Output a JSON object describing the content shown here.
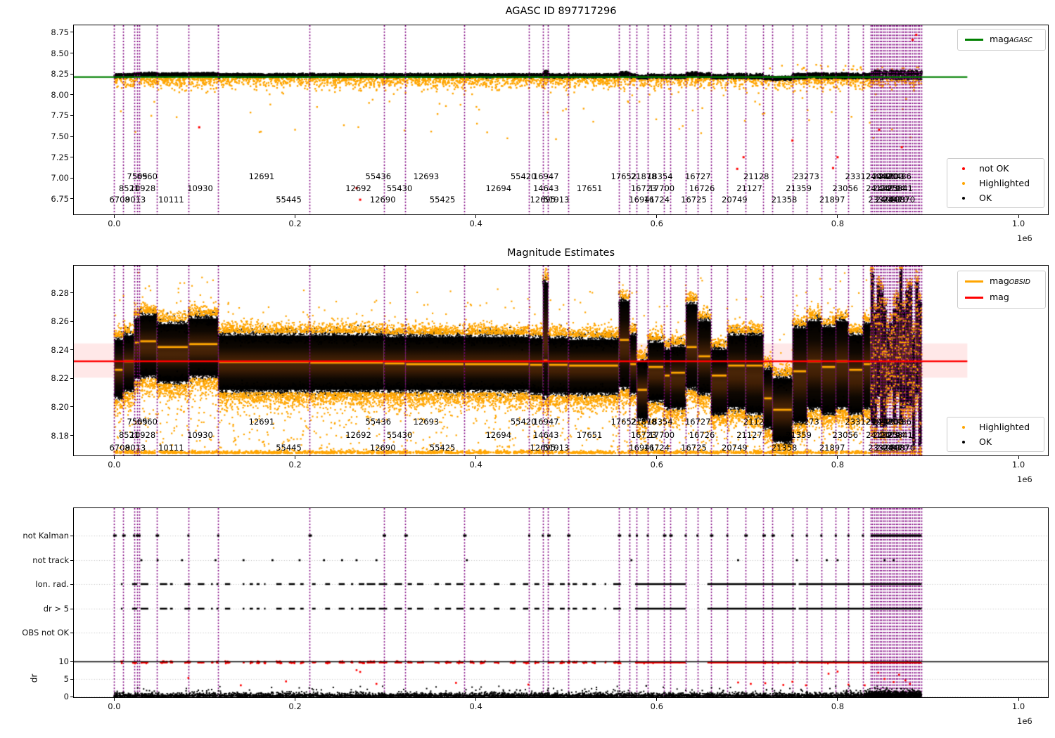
{
  "colors": {
    "orange": "#FFA500",
    "green": "#008000",
    "red": "#FF0000",
    "purple": "#800080",
    "black": "#000000",
    "pink_band": "rgba(255,0,0,0.09)",
    "grid": "#bbbbbb"
  },
  "xaxis": {
    "ticks": [
      0.0,
      0.2,
      0.4,
      0.6,
      0.8,
      1.0
    ],
    "offset_text": "1e6",
    "data_max": 0.893
  },
  "vlines": {
    "singles": [
      0.0,
      0.01,
      0.022,
      0.025,
      0.028,
      0.047,
      0.082,
      0.115,
      0.216,
      0.298,
      0.322,
      0.387,
      0.459,
      0.474,
      0.48,
      0.502,
      0.558,
      0.57,
      0.578,
      0.59,
      0.608,
      0.615,
      0.632,
      0.645,
      0.66,
      0.678,
      0.698,
      0.718,
      0.728,
      0.75,
      0.766,
      0.782,
      0.798,
      0.812,
      0.828
    ],
    "cluster": {
      "start": 0.8365,
      "end": 0.893,
      "step": 0.002
    }
  },
  "obsid_rows": [
    [
      [
        "7505",
        0.0255
      ],
      [
        "6960",
        0.0365
      ],
      [
        "12691",
        0.163
      ],
      [
        "55436",
        0.292
      ],
      [
        "12693",
        0.345
      ],
      [
        "55420",
        0.4525
      ],
      [
        "16947",
        0.4775
      ],
      [
        "17652",
        0.5635
      ],
      [
        "21878",
        0.5855
      ],
      [
        "18354",
        0.6035
      ],
      [
        "16727",
        0.6455
      ],
      [
        "21128",
        0.71
      ],
      [
        "23273",
        0.7655
      ],
      [
        "23312",
        0.8225
      ],
      [
        "24042",
        0.8455
      ],
      [
        "24920",
        0.8525
      ],
      [
        "24203",
        0.8595
      ],
      [
        "20486",
        0.8675
      ]
    ],
    [
      [
        "8521",
        0.0165
      ],
      [
        "10928",
        0.0315
      ],
      [
        "10930",
        0.095
      ],
      [
        "12692",
        0.27
      ],
      [
        "55430",
        0.3155
      ],
      [
        "12694",
        0.425
      ],
      [
        "14643",
        0.4775
      ],
      [
        "17651",
        0.5255
      ],
      [
        "16723",
        0.5855
      ],
      [
        "17700",
        0.6055
      ],
      [
        "16726",
        0.65
      ],
      [
        "21127",
        0.7025
      ],
      [
        "21359",
        0.757
      ],
      [
        "23056",
        0.8085
      ],
      [
        "24122",
        0.8455
      ],
      [
        "24423",
        0.853
      ],
      [
        "24794",
        0.861
      ],
      [
        "25841",
        0.869
      ]
    ],
    [
      [
        "6708",
        0.006
      ],
      [
        "9013",
        0.0235
      ],
      [
        "10111",
        0.063
      ],
      [
        "55445",
        0.193
      ],
      [
        "12690",
        0.297
      ],
      [
        "55425",
        0.363
      ],
      [
        "12695",
        0.474
      ],
      [
        "51913",
        0.489
      ],
      [
        "16941",
        0.5835
      ],
      [
        "16724",
        0.6
      ],
      [
        "16725",
        0.641
      ],
      [
        "20749",
        0.686
      ],
      [
        "21358",
        0.741
      ],
      [
        "21897",
        0.794
      ],
      [
        "23324",
        0.848
      ],
      [
        "24083",
        0.856
      ],
      [
        "24470",
        0.864
      ],
      [
        "20870",
        0.8715
      ]
    ]
  ],
  "chart_data": [
    {
      "type": "scatter",
      "title": "AGASC ID 897717296",
      "xlabel": "",
      "ylabel": "",
      "xlim": [
        -0.04465,
        1.0326
      ],
      "ylim": [
        6.564,
        8.834
      ],
      "yticks": [
        8.75,
        8.5,
        8.25,
        8.0,
        7.75,
        7.5,
        7.25,
        7.0,
        6.75
      ],
      "x_unit": "1e6",
      "mag_agasc": 8.212,
      "legend_line": [
        {
          "main": "mag",
          "sub": "AGASC",
          "color": "#008000"
        }
      ],
      "legend_points": [
        {
          "label": "not OK",
          "color": "#FF0000"
        },
        {
          "label": "Highlighted",
          "color": "#FFA500"
        },
        {
          "label": "OK",
          "color": "#000000"
        }
      ],
      "not_ok_points": [
        [
          0.094,
          7.61
        ],
        [
          0.268,
          6.88
        ],
        [
          0.272,
          6.74
        ],
        [
          0.689,
          7.11
        ],
        [
          0.696,
          7.25
        ],
        [
          0.75,
          7.45
        ],
        [
          0.795,
          7.12
        ],
        [
          0.8,
          7.25
        ],
        [
          0.846,
          7.58
        ],
        [
          0.871,
          7.37
        ],
        [
          0.883,
          8.66
        ],
        [
          0.887,
          8.72
        ]
      ]
    },
    {
      "type": "scatter",
      "title": "Magnitude Estimates",
      "xlabel": "",
      "ylabel": "",
      "xlim": [
        -0.04465,
        1.0326
      ],
      "ylim": [
        8.166,
        8.299
      ],
      "yticks": [
        8.28,
        8.26,
        8.24,
        8.22,
        8.2,
        8.18
      ],
      "mag": 8.232,
      "mag_band": [
        8.2205,
        8.2445
      ],
      "clip_strip_y": 8.168,
      "legend_line": [
        {
          "main": "mag",
          "sub": "OBSID",
          "color": "#FFA500"
        },
        {
          "main": "mag",
          "color": "#FF0000"
        }
      ],
      "legend_points": [
        {
          "label": "Highlighted",
          "color": "#FFA500"
        },
        {
          "label": "OK",
          "color": "#000000"
        }
      ],
      "segments": [
        [
          0.0,
          0.01,
          8.207,
          8.247,
          8.226
        ],
        [
          0.01,
          0.022,
          8.212,
          8.25,
          8.232
        ],
        [
          0.022,
          0.028,
          8.22,
          8.262,
          8.245
        ],
        [
          0.028,
          0.047,
          8.222,
          8.264,
          8.246
        ],
        [
          0.047,
          0.082,
          8.218,
          8.258,
          8.242
        ],
        [
          0.082,
          0.115,
          8.222,
          8.262,
          8.244
        ],
        [
          0.115,
          0.216,
          8.212,
          8.25,
          8.2315
        ],
        [
          0.216,
          0.298,
          8.212,
          8.25,
          8.231
        ],
        [
          0.298,
          0.322,
          8.212,
          8.249,
          8.2305
        ],
        [
          0.322,
          0.387,
          8.212,
          8.249,
          8.23
        ],
        [
          0.387,
          0.459,
          8.212,
          8.249,
          8.23
        ],
        [
          0.459,
          0.474,
          8.21,
          8.248,
          8.2295
        ],
        [
          0.474,
          0.48,
          8.208,
          8.287,
          8.2325
        ],
        [
          0.48,
          0.502,
          8.21,
          8.248,
          8.2295
        ],
        [
          0.502,
          0.558,
          8.21,
          8.247,
          8.229
        ],
        [
          0.558,
          0.57,
          8.214,
          8.274,
          8.247
        ],
        [
          0.57,
          0.578,
          8.21,
          8.25,
          8.23
        ],
        [
          0.578,
          0.59,
          8.192,
          8.232,
          8.212
        ],
        [
          0.59,
          0.608,
          8.205,
          8.245,
          8.228
        ],
        [
          0.608,
          0.615,
          8.2,
          8.24,
          8.222
        ],
        [
          0.615,
          0.632,
          8.2,
          8.242,
          8.224
        ],
        [
          0.632,
          0.645,
          8.214,
          8.272,
          8.242
        ],
        [
          0.645,
          0.66,
          8.21,
          8.26,
          8.2355
        ],
        [
          0.66,
          0.678,
          8.196,
          8.24,
          8.222
        ],
        [
          0.678,
          0.698,
          8.2,
          8.25,
          8.229
        ],
        [
          0.698,
          0.718,
          8.196,
          8.25,
          8.229
        ],
        [
          0.718,
          0.728,
          8.186,
          8.226,
          8.206
        ],
        [
          0.728,
          0.75,
          8.176,
          8.22,
          8.198
        ],
        [
          0.75,
          0.766,
          8.19,
          8.255,
          8.225
        ],
        [
          0.766,
          0.782,
          8.2,
          8.26,
          8.232
        ],
        [
          0.782,
          0.798,
          8.196,
          8.256,
          8.228
        ],
        [
          0.798,
          0.812,
          8.2,
          8.26,
          8.232
        ],
        [
          0.812,
          0.828,
          8.196,
          8.25,
          8.226
        ],
        [
          0.828,
          0.8365,
          8.2,
          8.258,
          8.23
        ],
        [
          0.8365,
          0.893,
          8.18,
          8.295,
          8.246
        ]
      ]
    },
    {
      "type": "scatter",
      "title": "",
      "ylabel": "dr",
      "categories": [
        "not Kalman",
        "not track",
        "Ion. rad.",
        "dr > 5",
        "OBS not OK"
      ],
      "dr_ticks": [
        10,
        5,
        0
      ],
      "hline": 10,
      "red_level": 9.72,
      "dash_region": [
        0.0,
        0.574
      ],
      "solid_runs": [
        [
          0.576,
          0.632
        ],
        [
          0.656,
          0.754
        ],
        [
          0.757,
          0.893
        ]
      ],
      "not_track_x": [
        0.03,
        0.048,
        0.075,
        0.112,
        0.143,
        0.175,
        0.205,
        0.232,
        0.252,
        0.268,
        0.29,
        0.39,
        0.572,
        0.69,
        0.755,
        0.788,
        0.8,
        0.852,
        0.862
      ],
      "red_strays": [
        [
          0.082,
          5.3
        ],
        [
          0.14,
          3.2
        ],
        [
          0.19,
          4.3
        ],
        [
          0.268,
          7.5
        ],
        [
          0.272,
          7.0
        ],
        [
          0.29,
          3.6
        ],
        [
          0.378,
          3.9
        ],
        [
          0.458,
          3.4
        ],
        [
          0.69,
          4.0
        ],
        [
          0.704,
          3.6
        ],
        [
          0.72,
          3.8
        ],
        [
          0.74,
          3.3
        ],
        [
          0.75,
          4.2
        ],
        [
          0.765,
          3.2
        ],
        [
          0.79,
          6.5
        ],
        [
          0.8,
          7.1
        ],
        [
          0.812,
          3.4
        ],
        [
          0.83,
          3.2
        ],
        [
          0.845,
          6.8
        ],
        [
          0.852,
          5.0
        ],
        [
          0.862,
          4.1
        ],
        [
          0.868,
          6.2
        ],
        [
          0.875,
          4.6
        ],
        [
          0.88,
          3.6
        ]
      ]
    }
  ]
}
